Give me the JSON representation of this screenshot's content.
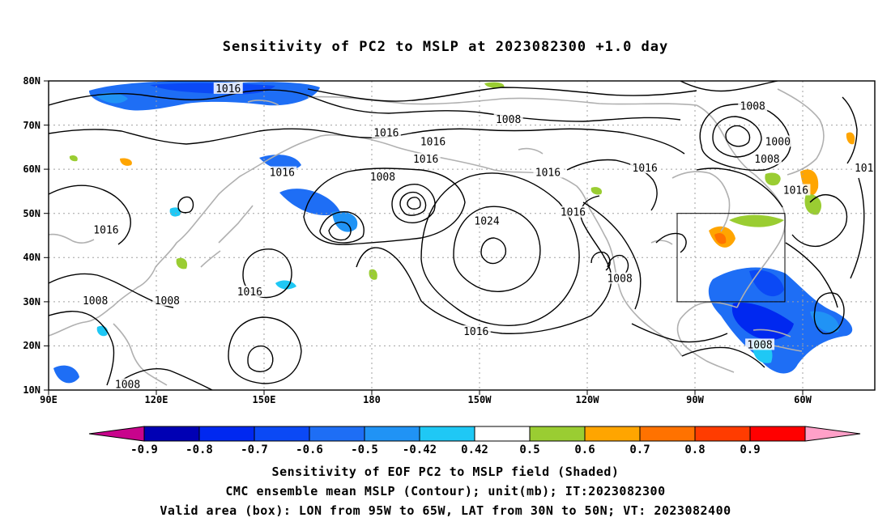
{
  "title": "Sensitivity of PC2 to MSLP at 2023082300 +1.0 day",
  "map": {
    "lon_labels": [
      "90E",
      "120E",
      "150E",
      "180",
      "150W",
      "120W",
      "90W",
      "60W"
    ],
    "lat_labels": [
      "80N",
      "70N",
      "60N",
      "50N",
      "40N",
      "30N",
      "20N",
      "10N"
    ],
    "lon_range_deg": [
      90,
      320
    ],
    "lat_range_deg": [
      10,
      80
    ],
    "grid": true,
    "valid_box": {
      "lon_west": "95W",
      "lon_east": "65W",
      "lat_south": "30N",
      "lat_north": "50N"
    },
    "contour_labels": [
      {
        "text": "1016",
        "lon": 140,
        "lat": 78
      },
      {
        "text": "1008",
        "lon": 218,
        "lat": 71
      },
      {
        "text": "1016",
        "lon": 184,
        "lat": 68
      },
      {
        "text": "1016",
        "lon": 197,
        "lat": 66
      },
      {
        "text": "1016",
        "lon": 195,
        "lat": 62
      },
      {
        "text": "1008",
        "lon": 286,
        "lat": 74
      },
      {
        "text": "1000",
        "lon": 293,
        "lat": 66
      },
      {
        "text": "1008",
        "lon": 290,
        "lat": 62
      },
      {
        "text": "101",
        "lon": 317,
        "lat": 60
      },
      {
        "text": "1016",
        "lon": 155,
        "lat": 59
      },
      {
        "text": "1008",
        "lon": 183,
        "lat": 58
      },
      {
        "text": "1016",
        "lon": 229,
        "lat": 59
      },
      {
        "text": "1016",
        "lon": 256,
        "lat": 60
      },
      {
        "text": "1016",
        "lon": 298,
        "lat": 55
      },
      {
        "text": "1024",
        "lon": 212,
        "lat": 48
      },
      {
        "text": "1016",
        "lon": 236,
        "lat": 50
      },
      {
        "text": "1016",
        "lon": 106,
        "lat": 46
      },
      {
        "text": "1016",
        "lon": 146,
        "lat": 32
      },
      {
        "text": "1008",
        "lon": 103,
        "lat": 30
      },
      {
        "text": "1008",
        "lon": 123,
        "lat": 30
      },
      {
        "text": "1008",
        "lon": 249,
        "lat": 35
      },
      {
        "text": "1016",
        "lon": 209,
        "lat": 23
      },
      {
        "text": "1008",
        "lon": 288,
        "lat": 20
      },
      {
        "text": "1008",
        "lon": 112,
        "lat": 11
      }
    ]
  },
  "colorbar": {
    "labels": [
      "-0.9",
      "-0.8",
      "-0.7",
      "-0.6",
      "-0.5",
      "-0.42",
      "0.42",
      "0.5",
      "0.6",
      "0.7",
      "0.8",
      "0.9"
    ],
    "colors": [
      "#c8048c",
      "#0000b4",
      "#0028f0",
      "#0b49f5",
      "#1e6ef5",
      "#2093f5",
      "#1fc8f5",
      "#ffffff",
      "#9acd32",
      "#ffa500",
      "#ff7200",
      "#ff3c00",
      "#ff0000",
      "#ffa0c8"
    ]
  },
  "footer": {
    "line1": "Sensitivity of EOF PC2 to MSLP field (Shaded)",
    "line2": "CMC ensemble mean MSLP (Contour); unit(mb); IT:2023082300",
    "line3": "Valid area (box): LON from 95W to 65W, LAT from 30N to 50N; VT: 2023082400"
  }
}
